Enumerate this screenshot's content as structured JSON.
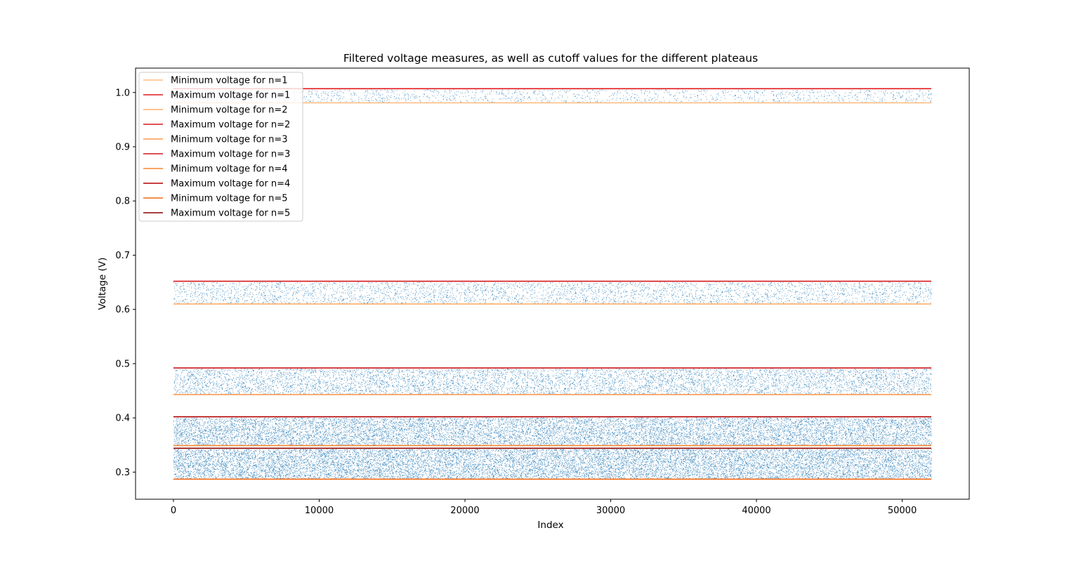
{
  "chart_data": {
    "type": "scatter",
    "title": "Filtered voltage measures, as well as cutoff values for the different plateaus",
    "xlabel": "Index",
    "ylabel": "Voltage (V)",
    "xlim": [
      -2600,
      54600
    ],
    "ylim": [
      0.25,
      1.045
    ],
    "x_ticks": [
      0,
      10000,
      20000,
      30000,
      40000,
      50000
    ],
    "x_tick_labels": [
      "0",
      "10000",
      "20000",
      "30000",
      "40000",
      "50000"
    ],
    "y_ticks": [
      0.3,
      0.4,
      0.5,
      0.6,
      0.7,
      0.8,
      0.9,
      1.0
    ],
    "y_tick_labels": [
      "0.3",
      "0.4",
      "0.5",
      "0.6",
      "0.7",
      "0.8",
      "0.9",
      "1.0"
    ],
    "grid": false,
    "legend_position": "top-left",
    "scatter": {
      "color": "#1f77b4",
      "x_range": [
        0,
        52000
      ],
      "bands": [
        {
          "ymin": 0.287,
          "ymax": 0.344,
          "density": 1.0
        },
        {
          "ymin": 0.349,
          "ymax": 0.402,
          "density": 0.9
        },
        {
          "ymin": 0.443,
          "ymax": 0.492,
          "density": 0.55
        },
        {
          "ymin": 0.61,
          "ymax": 0.652,
          "density": 0.35
        },
        {
          "ymin": 0.981,
          "ymax": 1.007,
          "density": 0.22
        }
      ]
    },
    "series": [
      {
        "name": "Minimum voltage for n=1",
        "color": "#fdbe85",
        "y": 0.981,
        "x": [
          0,
          52000
        ]
      },
      {
        "name": "Maximum voltage for n=1",
        "color": "#e31a1c",
        "y": 1.007,
        "x": [
          0,
          52000
        ]
      },
      {
        "name": "Minimum voltage for n=2",
        "color": "#fdae6b",
        "y": 0.61,
        "x": [
          0,
          52000
        ]
      },
      {
        "name": "Maximum voltage for n=2",
        "color": "#d7191c",
        "y": 0.652,
        "x": [
          0,
          52000
        ]
      },
      {
        "name": "Minimum voltage for n=3",
        "color": "#fd9a50",
        "y": 0.443,
        "x": [
          0,
          52000
        ]
      },
      {
        "name": "Maximum voltage for n=3",
        "color": "#cb181d",
        "y": 0.492,
        "x": [
          0,
          52000
        ]
      },
      {
        "name": "Minimum voltage for n=4",
        "color": "#f7852e",
        "y": 0.349,
        "x": [
          0,
          52000
        ]
      },
      {
        "name": "Maximum voltage for n=4",
        "color": "#b30000",
        "y": 0.402,
        "x": [
          0,
          52000
        ]
      },
      {
        "name": "Minimum voltage for n=5",
        "color": "#f16913",
        "y": 0.287,
        "x": [
          0,
          52000
        ]
      },
      {
        "name": "Maximum voltage for n=5",
        "color": "#8b0000",
        "y": 0.344,
        "x": [
          0,
          52000
        ]
      }
    ]
  }
}
